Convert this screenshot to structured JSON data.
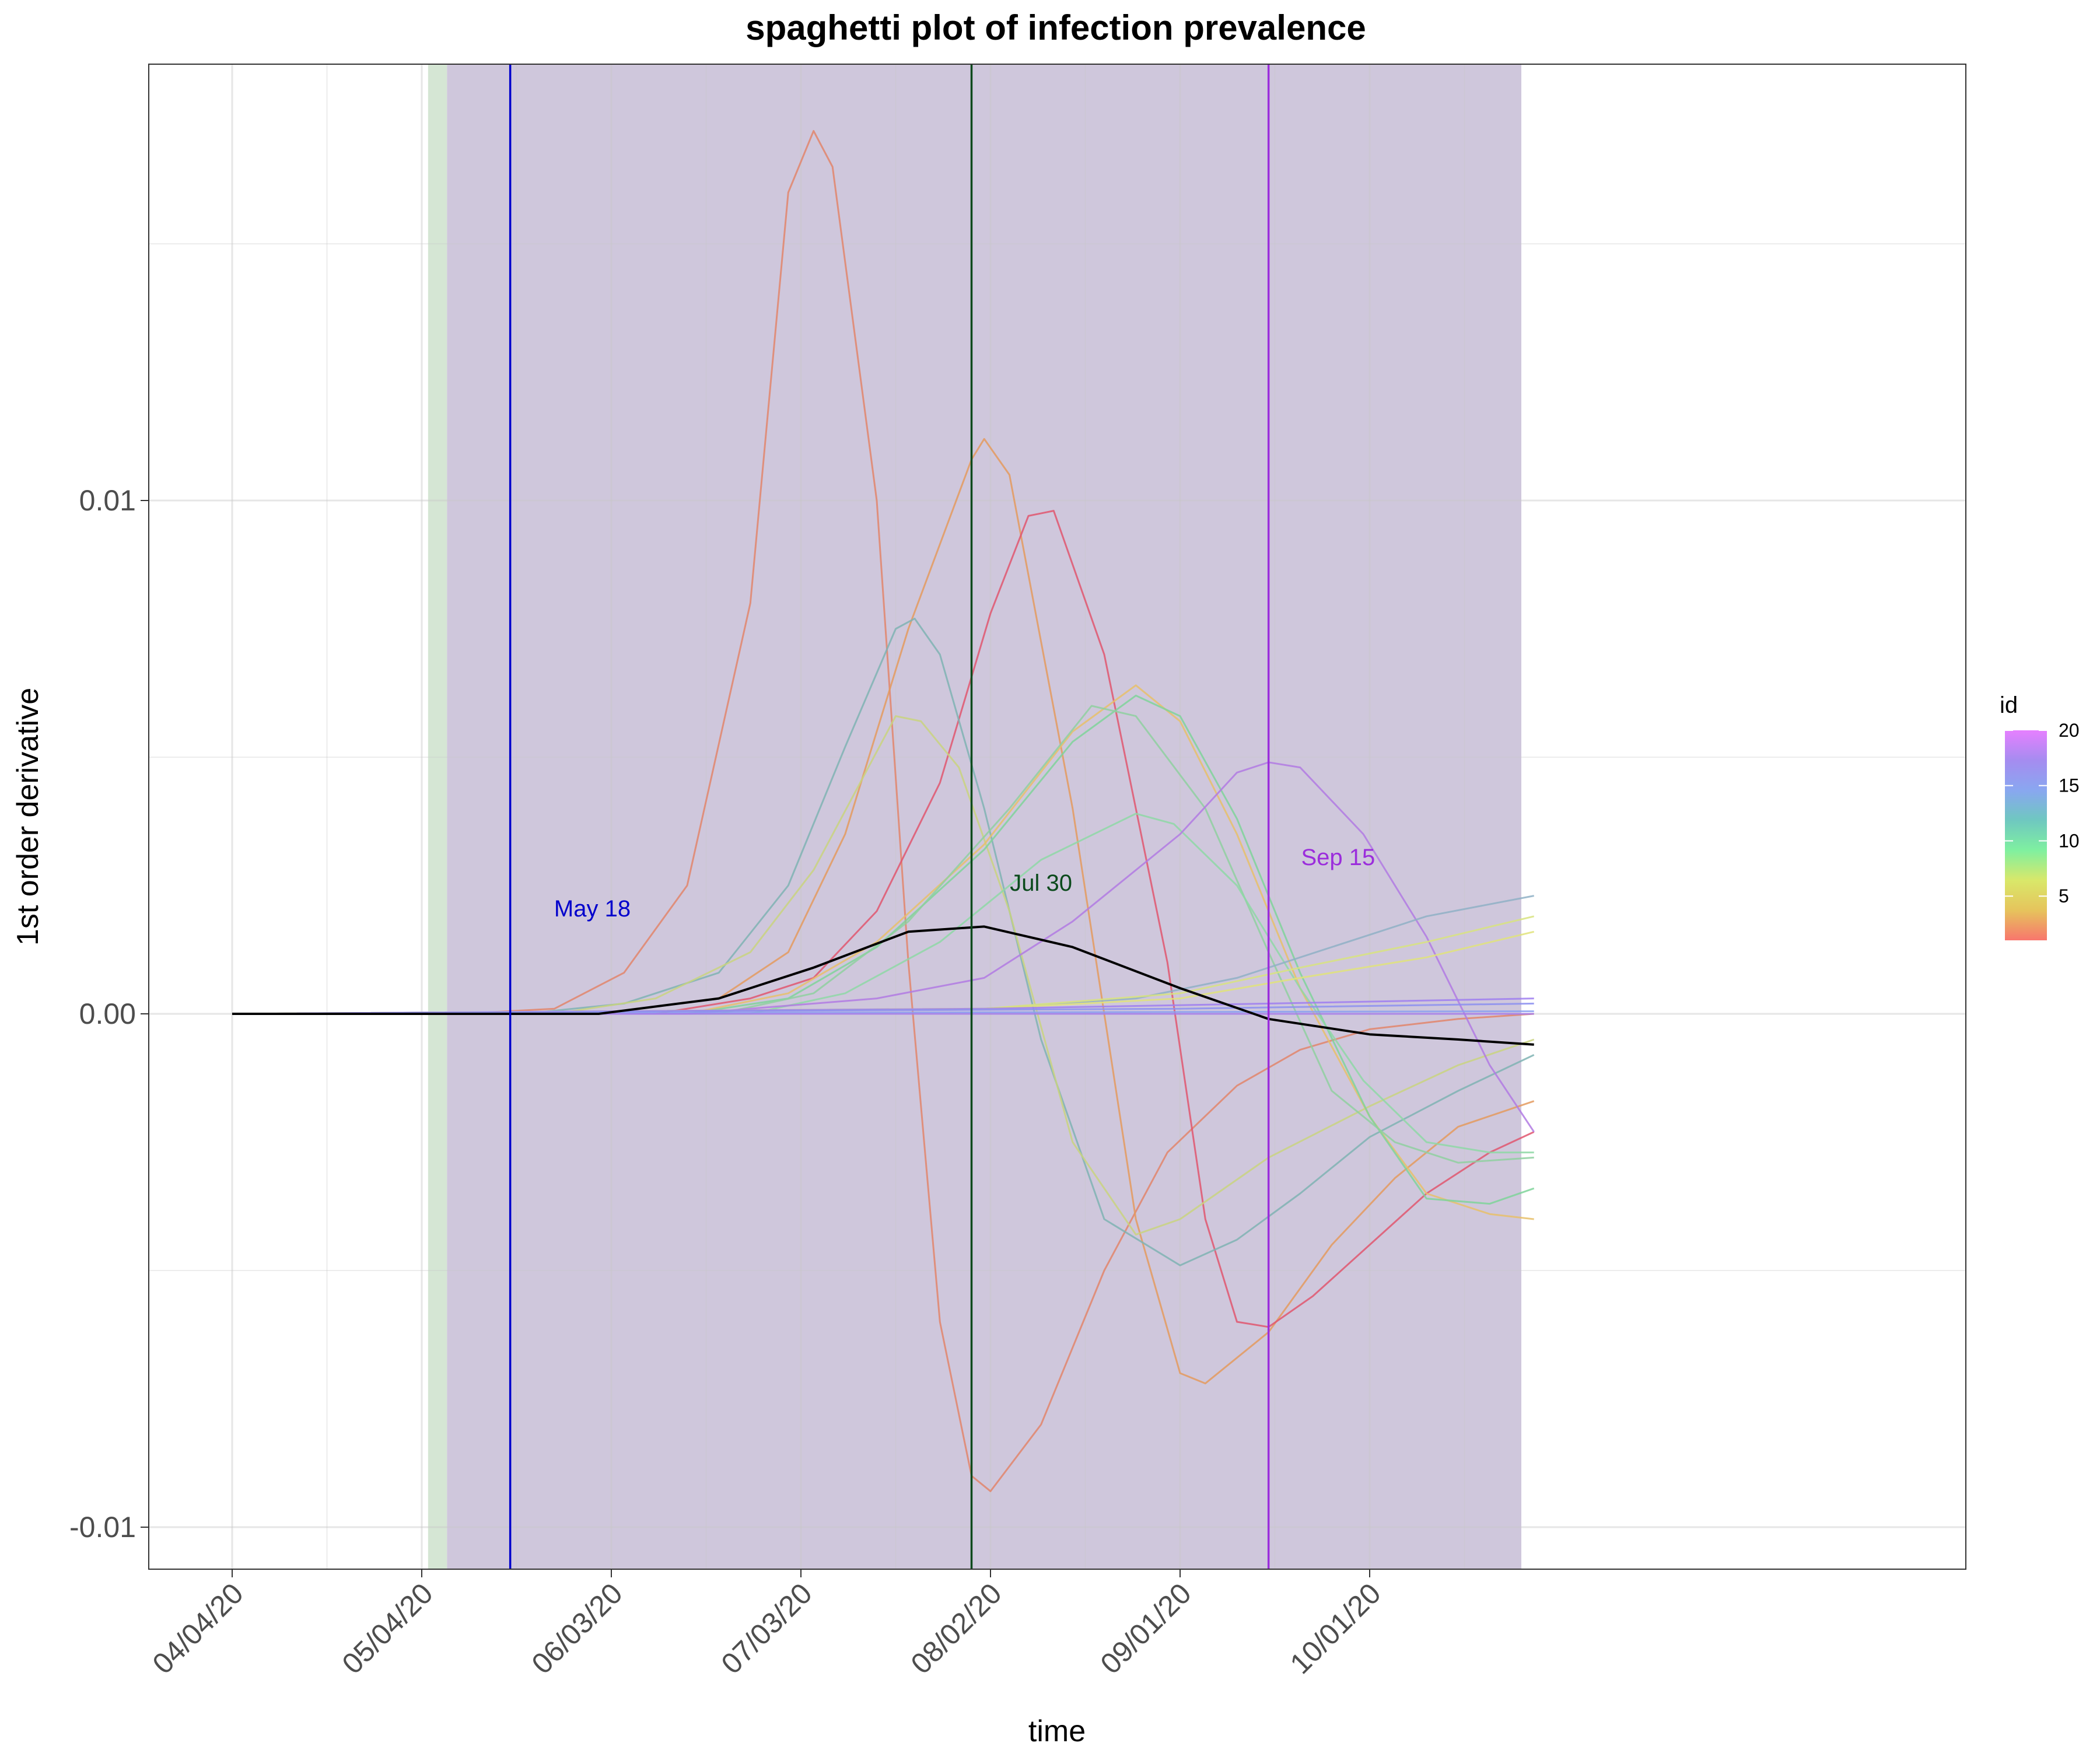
{
  "chart_data": {
    "type": "line",
    "title": "spaghetti plot of infection prevalence",
    "xlabel": "time",
    "ylabel": "1st order derivative",
    "x_range": [
      "2020-04-04",
      "2020-10-31"
    ],
    "ylim": [
      -0.0108,
      0.0185
    ],
    "x_ticks": [
      {
        "date": "2020-04-04",
        "label": "04/04/20"
      },
      {
        "date": "2020-05-04",
        "label": "05/04/20"
      },
      {
        "date": "2020-06-03",
        "label": "06/03/20"
      },
      {
        "date": "2020-07-03",
        "label": "07/03/20"
      },
      {
        "date": "2020-08-02",
        "label": "08/02/20"
      },
      {
        "date": "2020-09-01",
        "label": "09/01/20"
      },
      {
        "date": "2020-10-01",
        "label": "10/01/20"
      }
    ],
    "y_ticks": [
      {
        "value": 0.01,
        "label": "0.01"
      },
      {
        "value": 0.0,
        "label": "0.00"
      },
      {
        "value": -0.01,
        "label": "-0.01"
      }
    ],
    "grid": true,
    "shaded_regions": [
      {
        "from": "2020-05-05",
        "to": "2020-05-08",
        "color": "#d5e6d4"
      },
      {
        "from": "2020-05-08",
        "to": "2020-10-25",
        "color": "#cfc7dc"
      }
    ],
    "vlines": [
      {
        "date": "2020-05-18",
        "color": "#0000cc",
        "label": "May 18",
        "label_date": "2020-05-31",
        "label_y": 0.0019
      },
      {
        "date": "2020-07-30",
        "color": "#0b4a1c",
        "label": "Jul 30",
        "label_date": "2020-08-10",
        "label_y": 0.0024
      },
      {
        "date": "2020-09-15",
        "color": "#9b2ddc",
        "label": "Sep 15",
        "label_date": "2020-09-26",
        "label_y": 0.0029
      }
    ],
    "series": [
      {
        "id": 2,
        "color": "#e2856b",
        "points": [
          [
            "2020-04-04",
            0
          ],
          [
            "2020-05-10",
            0
          ],
          [
            "2020-05-25",
            0.0001
          ],
          [
            "2020-06-05",
            0.0008
          ],
          [
            "2020-06-15",
            0.0025
          ],
          [
            "2020-06-25",
            0.008
          ],
          [
            "2020-07-01",
            0.016
          ],
          [
            "2020-07-05",
            0.0172
          ],
          [
            "2020-07-08",
            0.0165
          ],
          [
            "2020-07-15",
            0.01
          ],
          [
            "2020-07-20",
            0.001
          ],
          [
            "2020-07-25",
            -0.006
          ],
          [
            "2020-07-30",
            -0.009
          ],
          [
            "2020-08-02",
            -0.0093
          ],
          [
            "2020-08-10",
            -0.008
          ],
          [
            "2020-08-20",
            -0.005
          ],
          [
            "2020-08-30",
            -0.0027
          ],
          [
            "2020-09-10",
            -0.0014
          ],
          [
            "2020-09-20",
            -0.0007
          ],
          [
            "2020-10-01",
            -0.0003
          ],
          [
            "2020-10-15",
            -0.0001
          ],
          [
            "2020-10-27",
            0
          ]
        ]
      },
      {
        "id": 3,
        "color": "#e49a5e",
        "points": [
          [
            "2020-04-04",
            0
          ],
          [
            "2020-06-01",
            0
          ],
          [
            "2020-06-20",
            0.0003
          ],
          [
            "2020-07-01",
            0.0012
          ],
          [
            "2020-07-10",
            0.0035
          ],
          [
            "2020-07-20",
            0.0075
          ],
          [
            "2020-07-30",
            0.0108
          ],
          [
            "2020-08-01",
            0.0112
          ],
          [
            "2020-08-05",
            0.0105
          ],
          [
            "2020-08-15",
            0.004
          ],
          [
            "2020-08-25",
            -0.004
          ],
          [
            "2020-09-01",
            -0.007
          ],
          [
            "2020-09-05",
            -0.0072
          ],
          [
            "2020-09-15",
            -0.0062
          ],
          [
            "2020-09-25",
            -0.0045
          ],
          [
            "2020-10-05",
            -0.0032
          ],
          [
            "2020-10-15",
            -0.0022
          ],
          [
            "2020-10-27",
            -0.0017
          ]
        ]
      },
      {
        "id": 1,
        "color": "#e0566f",
        "points": [
          [
            "2020-04-04",
            0
          ],
          [
            "2020-06-10",
            0
          ],
          [
            "2020-06-25",
            0.0003
          ],
          [
            "2020-07-05",
            0.0007
          ],
          [
            "2020-07-15",
            0.002
          ],
          [
            "2020-07-25",
            0.0045
          ],
          [
            "2020-08-02",
            0.0078
          ],
          [
            "2020-08-08",
            0.0097
          ],
          [
            "2020-08-12",
            0.0098
          ],
          [
            "2020-08-20",
            0.007
          ],
          [
            "2020-08-30",
            0.001
          ],
          [
            "2020-09-05",
            -0.004
          ],
          [
            "2020-09-10",
            -0.006
          ],
          [
            "2020-09-15",
            -0.0061
          ],
          [
            "2020-09-22",
            -0.0055
          ],
          [
            "2020-10-01",
            -0.0045
          ],
          [
            "2020-10-10",
            -0.0035
          ],
          [
            "2020-10-20",
            -0.0027
          ],
          [
            "2020-10-27",
            -0.0023
          ]
        ]
      },
      {
        "id": 13,
        "color": "#7fb3b3",
        "points": [
          [
            "2020-04-04",
            0
          ],
          [
            "2020-05-20",
            0
          ],
          [
            "2020-06-05",
            0.0002
          ],
          [
            "2020-06-20",
            0.0008
          ],
          [
            "2020-07-01",
            0.0025
          ],
          [
            "2020-07-10",
            0.0052
          ],
          [
            "2020-07-18",
            0.0075
          ],
          [
            "2020-07-21",
            0.0077
          ],
          [
            "2020-07-25",
            0.007
          ],
          [
            "2020-08-01",
            0.004
          ],
          [
            "2020-08-10",
            -0.0005
          ],
          [
            "2020-08-20",
            -0.004
          ],
          [
            "2020-09-01",
            -0.0049
          ],
          [
            "2020-09-10",
            -0.0044
          ],
          [
            "2020-09-20",
            -0.0035
          ],
          [
            "2020-10-01",
            -0.0024
          ],
          [
            "2020-10-15",
            -0.0015
          ],
          [
            "2020-10-27",
            -0.0008
          ]
        ]
      },
      {
        "id": 6,
        "color": "#c9d47f",
        "points": [
          [
            "2020-04-04",
            0
          ],
          [
            "2020-05-25",
            0
          ],
          [
            "2020-06-10",
            0.0003
          ],
          [
            "2020-06-25",
            0.0012
          ],
          [
            "2020-07-05",
            0.0028
          ],
          [
            "2020-07-18",
            0.0058
          ],
          [
            "2020-07-22",
            0.0057
          ],
          [
            "2020-07-28",
            0.0048
          ],
          [
            "2020-08-05",
            0.002
          ],
          [
            "2020-08-15",
            -0.0025
          ],
          [
            "2020-08-25",
            -0.0043
          ],
          [
            "2020-09-01",
            -0.004
          ],
          [
            "2020-09-15",
            -0.0028
          ],
          [
            "2020-10-01",
            -0.0018
          ],
          [
            "2020-10-15",
            -0.001
          ],
          [
            "2020-10-27",
            -0.0005
          ]
        ]
      },
      {
        "id": 4,
        "color": "#e8c06a",
        "points": [
          [
            "2020-04-04",
            0
          ],
          [
            "2020-06-15",
            0
          ],
          [
            "2020-07-01",
            0.0004
          ],
          [
            "2020-07-15",
            0.0014
          ],
          [
            "2020-08-01",
            0.0033
          ],
          [
            "2020-08-15",
            0.0055
          ],
          [
            "2020-08-25",
            0.0064
          ],
          [
            "2020-09-01",
            0.0057
          ],
          [
            "2020-09-10",
            0.0035
          ],
          [
            "2020-09-20",
            0.0005
          ],
          [
            "2020-10-01",
            -0.002
          ],
          [
            "2020-10-10",
            -0.0035
          ],
          [
            "2020-10-20",
            -0.0039
          ],
          [
            "2020-10-27",
            -0.004
          ]
        ]
      },
      {
        "id": 9,
        "color": "#7fd39a",
        "points": [
          [
            "2020-04-04",
            0
          ],
          [
            "2020-06-15",
            0
          ],
          [
            "2020-07-01",
            0.0003
          ],
          [
            "2020-07-15",
            0.0013
          ],
          [
            "2020-08-01",
            0.0032
          ],
          [
            "2020-08-15",
            0.0053
          ],
          [
            "2020-08-25",
            0.0062
          ],
          [
            "2020-09-01",
            0.0058
          ],
          [
            "2020-09-10",
            0.0038
          ],
          [
            "2020-09-20",
            0.0008
          ],
          [
            "2020-10-01",
            -0.002
          ],
          [
            "2020-10-10",
            -0.0036
          ],
          [
            "2020-10-20",
            -0.0037
          ],
          [
            "2020-10-27",
            -0.0034
          ]
        ]
      },
      {
        "id": 10,
        "color": "#8fd0a0",
        "points": [
          [
            "2020-04-04",
            0
          ],
          [
            "2020-06-20",
            0
          ],
          [
            "2020-07-05",
            0.0004
          ],
          [
            "2020-07-20",
            0.0018
          ],
          [
            "2020-08-05",
            0.004
          ],
          [
            "2020-08-18",
            0.006
          ],
          [
            "2020-08-25",
            0.0058
          ],
          [
            "2020-09-05",
            0.004
          ],
          [
            "2020-09-15",
            0.0012
          ],
          [
            "2020-09-25",
            -0.0015
          ],
          [
            "2020-10-05",
            -0.0025
          ],
          [
            "2020-10-15",
            -0.0029
          ],
          [
            "2020-10-27",
            -0.0028
          ]
        ]
      },
      {
        "id": 11,
        "color": "#8ed8a6",
        "points": [
          [
            "2020-04-04",
            0
          ],
          [
            "2020-06-25",
            0
          ],
          [
            "2020-07-10",
            0.0004
          ],
          [
            "2020-07-25",
            0.0014
          ],
          [
            "2020-08-10",
            0.003
          ],
          [
            "2020-08-25",
            0.0039
          ],
          [
            "2020-08-31",
            0.0037
          ],
          [
            "2020-09-10",
            0.0025
          ],
          [
            "2020-09-20",
            0.0005
          ],
          [
            "2020-09-30",
            -0.0013
          ],
          [
            "2020-10-10",
            -0.0025
          ],
          [
            "2020-10-20",
            -0.0027
          ],
          [
            "2020-10-27",
            -0.0027
          ]
        ]
      },
      {
        "id": 18,
        "color": "#b17ae3",
        "points": [
          [
            "2020-04-04",
            0
          ],
          [
            "2020-06-15",
            0
          ],
          [
            "2020-07-15",
            0.0003
          ],
          [
            "2020-08-01",
            0.0007
          ],
          [
            "2020-08-15",
            0.0018
          ],
          [
            "2020-09-01",
            0.0035
          ],
          [
            "2020-09-10",
            0.0047
          ],
          [
            "2020-09-15",
            0.0049
          ],
          [
            "2020-09-20",
            0.0048
          ],
          [
            "2020-09-30",
            0.0035
          ],
          [
            "2020-10-10",
            0.0015
          ],
          [
            "2020-10-20",
            -0.001
          ],
          [
            "2020-10-27",
            -0.0023
          ]
        ]
      },
      {
        "id": 14,
        "color": "#8fb0c6",
        "points": [
          [
            "2020-04-04",
            0
          ],
          [
            "2020-08-01",
            0.0001
          ],
          [
            "2020-08-25",
            0.0003
          ],
          [
            "2020-09-10",
            0.0007
          ],
          [
            "2020-09-25",
            0.0013
          ],
          [
            "2020-10-10",
            0.0019
          ],
          [
            "2020-10-27",
            0.0023
          ]
        ]
      },
      {
        "id": 7,
        "color": "#d8e37f",
        "points": [
          [
            "2020-04-04",
            0
          ],
          [
            "2020-08-01",
            0.0001
          ],
          [
            "2020-09-01",
            0.0004
          ],
          [
            "2020-09-20",
            0.0009
          ],
          [
            "2020-10-10",
            0.0014
          ],
          [
            "2020-10-27",
            0.0019
          ]
        ]
      },
      {
        "id": 6,
        "color": "#e0e37a",
        "points": [
          [
            "2020-04-04",
            0
          ],
          [
            "2020-08-01",
            0.0001
          ],
          [
            "2020-09-01",
            0.0003
          ],
          [
            "2020-09-20",
            0.0007
          ],
          [
            "2020-10-10",
            0.0011
          ],
          [
            "2020-10-27",
            0.0016
          ]
        ]
      },
      {
        "id": 17,
        "color": "#9f7ef0",
        "points": [
          [
            "2020-04-04",
            0
          ],
          [
            "2020-08-01",
            0.0001
          ],
          [
            "2020-09-15",
            0.0002
          ],
          [
            "2020-10-27",
            0.0003
          ]
        ]
      },
      {
        "id": 16,
        "color": "#8c8ff0",
        "points": [
          [
            "2020-04-04",
            0
          ],
          [
            "2020-09-01",
            0.0001
          ],
          [
            "2020-10-27",
            0.0002
          ]
        ]
      },
      {
        "id": 15,
        "color": "#8aa0f0",
        "points": [
          [
            "2020-04-04",
            0
          ],
          [
            "2020-10-27",
            5e-05
          ]
        ]
      },
      {
        "id": 19,
        "color": "#a47bea",
        "points": [
          [
            "2020-04-04",
            0
          ],
          [
            "2020-10-27",
            0
          ]
        ]
      },
      {
        "id": 0,
        "color": "#000000",
        "name": "",
        "points": [
          [
            "2020-04-04",
            0
          ],
          [
            "2020-06-01",
            0
          ],
          [
            "2020-06-20",
            0.0003
          ],
          [
            "2020-07-05",
            0.0009
          ],
          [
            "2020-07-20",
            0.0016
          ],
          [
            "2020-08-01",
            0.0017
          ],
          [
            "2020-08-15",
            0.0013
          ],
          [
            "2020-09-01",
            0.0005
          ],
          [
            "2020-09-15",
            -0.0001
          ],
          [
            "2020-10-01",
            -0.0004
          ],
          [
            "2020-10-15",
            -0.0005
          ],
          [
            "2020-10-27",
            -0.0006
          ]
        ]
      }
    ],
    "legend": {
      "title": "id",
      "placement": "right",
      "type": "colorbar",
      "ticks": [
        5,
        10,
        15,
        20
      ],
      "range": [
        1,
        20
      ],
      "gradient": [
        "#f8766d",
        "#e6c45c",
        "#d9e86a",
        "#7ff0a0",
        "#6fc8c0",
        "#89a7f0",
        "#a58cf0",
        "#e680ff"
      ]
    }
  }
}
